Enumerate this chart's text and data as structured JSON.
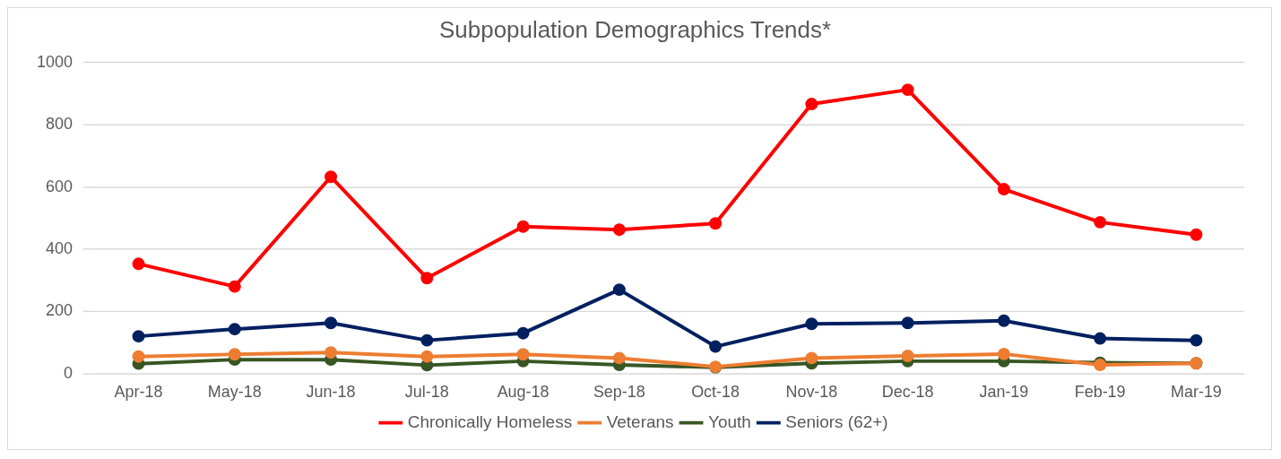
{
  "chart_data": {
    "type": "line",
    "title": "Subpopulation Demographics Trends*",
    "categories": [
      "Apr-18",
      "May-18",
      "Jun-18",
      "Jul-18",
      "Aug-18",
      "Sep-18",
      "Oct-18",
      "Nov-18",
      "Dec-18",
      "Jan-19",
      "Feb-19",
      "Mar-19"
    ],
    "series": [
      {
        "name": "Chronically Homeless",
        "color": "#ff0000",
        "values": [
          353,
          280,
          633,
          307,
          473,
          463,
          483,
          867,
          913,
          593,
          487,
          447
        ]
      },
      {
        "name": "Veterans",
        "color": "#ed7d31",
        "values": [
          55,
          62,
          68,
          55,
          62,
          50,
          22,
          50,
          57,
          63,
          28,
          33
        ]
      },
      {
        "name": "Youth",
        "color": "#375623",
        "values": [
          32,
          45,
          45,
          27,
          40,
          28,
          20,
          33,
          40,
          40,
          35,
          33
        ]
      },
      {
        "name": "Seniors (62+)",
        "color": "#002060",
        "values": [
          120,
          143,
          163,
          107,
          130,
          270,
          87,
          160,
          163,
          170,
          113,
          107
        ]
      }
    ],
    "ylim": [
      0,
      1000
    ],
    "yticks": [
      0,
      200,
      400,
      600,
      800,
      1000
    ],
    "grid": "y",
    "legend": "bottom",
    "marker": "circle",
    "line_style": "solid"
  }
}
